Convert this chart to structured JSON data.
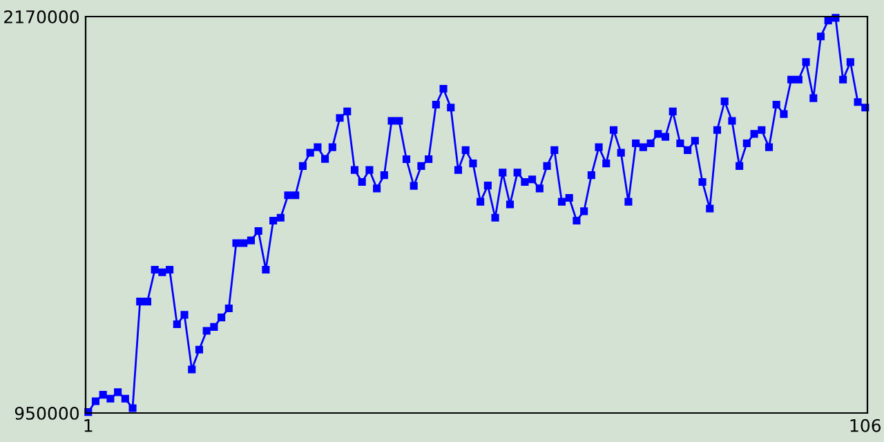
{
  "chart_data": {
    "type": "line",
    "marker": "square",
    "line_style": "solid",
    "grid": false,
    "legend": false,
    "x": [
      1,
      2,
      3,
      4,
      5,
      6,
      7,
      8,
      9,
      10,
      11,
      12,
      13,
      14,
      15,
      16,
      17,
      18,
      19,
      20,
      21,
      22,
      23,
      24,
      25,
      26,
      27,
      28,
      29,
      30,
      31,
      32,
      33,
      34,
      35,
      36,
      37,
      38,
      39,
      40,
      41,
      42,
      43,
      44,
      45,
      46,
      47,
      48,
      49,
      50,
      51,
      52,
      53,
      54,
      55,
      56,
      57,
      58,
      59,
      60,
      61,
      62,
      63,
      64,
      65,
      66,
      67,
      68,
      69,
      70,
      71,
      72,
      73,
      74,
      75,
      76,
      77,
      78,
      79,
      80,
      81,
      82,
      83,
      84,
      85,
      86,
      87,
      88,
      89,
      90,
      91,
      92,
      93,
      94,
      95,
      96,
      97,
      98,
      99,
      100,
      101,
      102,
      103,
      104,
      105,
      106
    ],
    "series": [
      {
        "color": "#0000ff",
        "values": [
          953000,
          986000,
          1006000,
          994000,
          1014000,
          994000,
          965000,
          1293000,
          1293000,
          1391000,
          1383000,
          1391000,
          1223000,
          1252000,
          1084000,
          1145000,
          1203000,
          1215000,
          1244000,
          1272000,
          1473000,
          1473000,
          1481000,
          1510000,
          1391000,
          1542000,
          1551000,
          1620000,
          1620000,
          1710000,
          1751000,
          1768000,
          1732000,
          1768000,
          1858000,
          1878000,
          1698000,
          1661000,
          1698000,
          1641000,
          1682000,
          1849000,
          1849000,
          1731000,
          1649000,
          1710000,
          1731000,
          1899000,
          1948000,
          1890000,
          1698000,
          1759000,
          1718000,
          1600000,
          1650000,
          1551000,
          1690000,
          1592000,
          1690000,
          1661000,
          1669000,
          1641000,
          1710000,
          1759000,
          1600000,
          1612000,
          1542000,
          1571000,
          1682000,
          1768000,
          1718000,
          1821000,
          1751000,
          1600000,
          1780000,
          1768000,
          1780000,
          1809000,
          1800000,
          1878000,
          1780000,
          1759000,
          1788000,
          1661000,
          1579000,
          1821000,
          1909000,
          1849000,
          1710000,
          1780000,
          1809000,
          1821000,
          1768000,
          1899000,
          1870000,
          1976000,
          1976000,
          2030000,
          1919000,
          2109000,
          2158000,
          2166000,
          1976000,
          2030000,
          1907000,
          1890000
        ]
      }
    ],
    "xlim": [
      0.65,
      106.3
    ],
    "ylim": [
      950000,
      2170000
    ],
    "xticks": [
      1,
      106
    ],
    "yticks": [
      950000,
      2170000
    ]
  }
}
